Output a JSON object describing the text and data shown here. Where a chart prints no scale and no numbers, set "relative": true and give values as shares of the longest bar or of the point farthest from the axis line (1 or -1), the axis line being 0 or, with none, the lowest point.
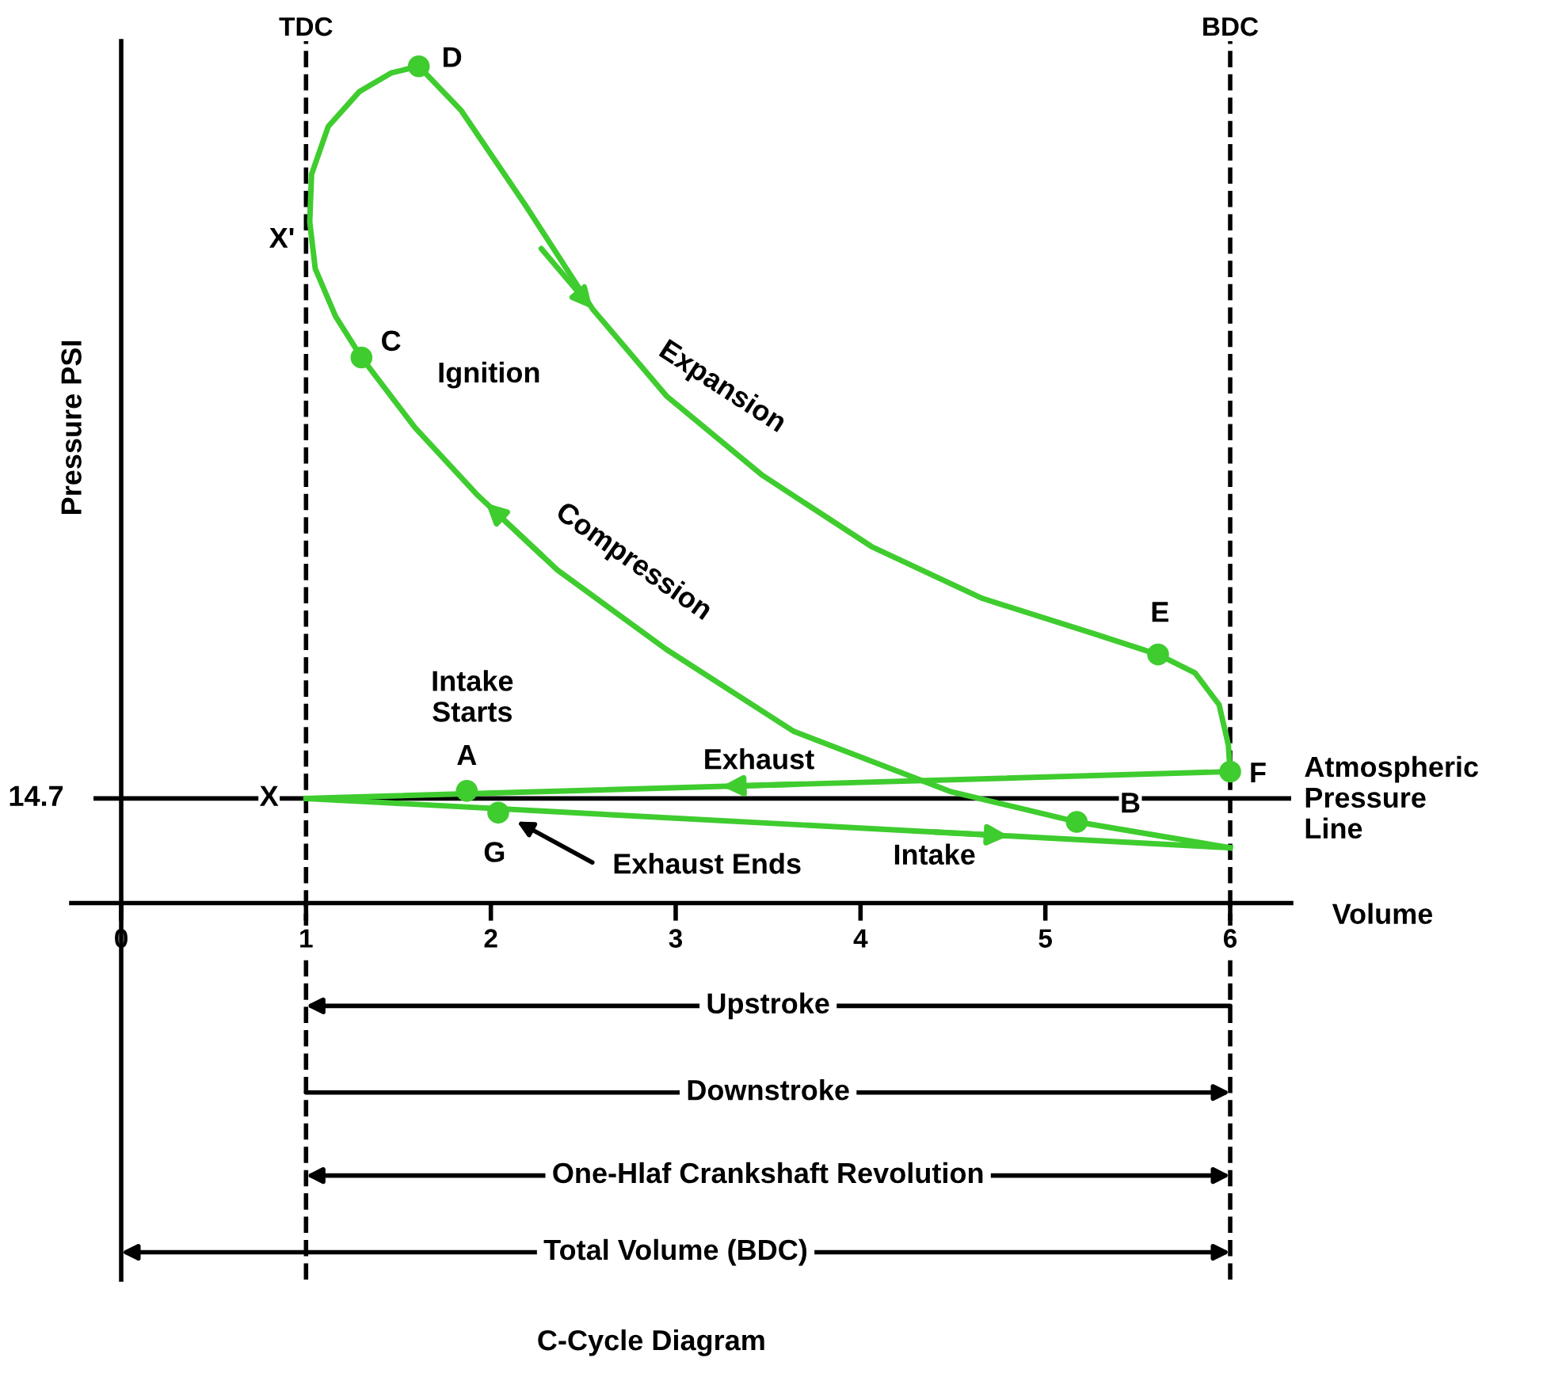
{
  "chart_data": {
    "type": "line",
    "relative": true,
    "title": "C-Cycle Diagram",
    "xlabel": "Volume",
    "ylabel": "Pressure PSI",
    "xlim": [
      -0.27,
      6.33
    ],
    "xticks": [
      0,
      1,
      2,
      3,
      4,
      5,
      6
    ],
    "tick_labels": "x",
    "grid": false,
    "legend": false,
    "series": [
      {
        "color": "#3fcc2f",
        "line_style": "solid",
        "x": [
          1.0,
          6.0
        ],
        "values": [
          0.125,
          0.066
        ]
      },
      {
        "color": "#3fcc2f",
        "line_style": "solid",
        "x": [
          1.3,
          1.59,
          1.93,
          2.36,
          2.95,
          3.64,
          4.49,
          5.17,
          6.0
        ],
        "values": [
          0.652,
          0.568,
          0.487,
          0.398,
          0.303,
          0.205,
          0.133,
          0.097,
          0.066
        ]
      },
      {
        "color": "#3fcc2f",
        "line_style": "solid",
        "x": [
          1.3,
          1.16,
          1.05,
          1.02,
          1.03,
          1.12,
          1.29,
          1.46,
          1.61,
          1.84,
          2.19,
          2.55,
          2.95,
          3.47,
          4.06,
          4.66,
          5.26,
          5.61,
          5.81,
          5.94,
          5.99,
          6.0
        ],
        "values": [
          0.652,
          0.701,
          0.758,
          0.814,
          0.871,
          0.928,
          0.97,
          0.992,
          1.0,
          0.947,
          0.833,
          0.71,
          0.606,
          0.511,
          0.426,
          0.364,
          0.322,
          0.297,
          0.275,
          0.237,
          0.189,
          0.157
        ]
      },
      {
        "color": "#3fcc2f",
        "line_style": "solid",
        "x": [
          6.0,
          1.0
        ],
        "values": [
          0.157,
          0.125
        ]
      },
      {
        "type": "scatter",
        "color": "#3fcc2f",
        "marker": "circle",
        "x": [
          1.87,
          5.17,
          1.3,
          1.61,
          5.61,
          6.0,
          2.04
        ],
        "values": [
          0.134,
          0.097,
          0.652,
          1.0,
          0.297,
          0.157,
          0.108
        ]
      }
    ],
    "ref_lines": [
      {
        "axis": "x",
        "value": 1,
        "label": "TDC",
        "color": "#000000",
        "line_style": "dashed"
      },
      {
        "axis": "x",
        "value": 6,
        "label": "BDC",
        "color": "#000000",
        "line_style": "dashed"
      },
      {
        "axis": "y",
        "value": 0.125,
        "color": "#000000",
        "line_style": "solid"
      }
    ],
    "annotations": [
      "A",
      "B",
      "C",
      "D",
      "E",
      "F",
      "G",
      "X",
      "X'",
      "Ignition",
      "Expansion",
      "Compression",
      "Intake\nStarts",
      "Exhaust",
      "Exhaust Ends",
      "Intake",
      "Atmospheric\nPressure\nLine",
      "14.7",
      "Upstroke",
      "Downstroke",
      "One-Hlaf Crankshaft Revolution",
      "Total Volume (BDC)"
    ]
  }
}
